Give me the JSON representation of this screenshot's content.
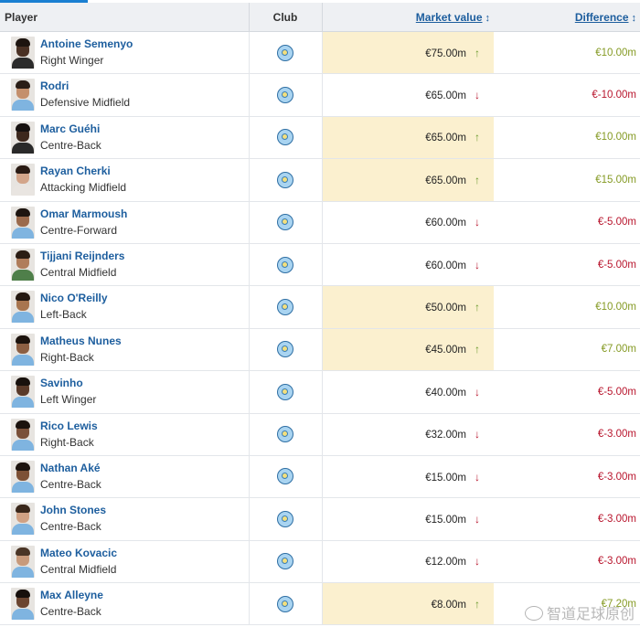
{
  "header": {
    "player": "Player",
    "club": "Club",
    "market_value": "Market value",
    "difference": "Difference",
    "sort_glyph": "↕"
  },
  "colors": {
    "link_blue": "#1d5e9e",
    "highlight": "#fbf0cf",
    "up_green": "#6b9b2e",
    "down_red": "#b8152d"
  },
  "rows": [
    {
      "name": "Antoine Semenyo",
      "position": "Right Winger",
      "value": "€75.00m",
      "trend": "up",
      "diff": "€10.00m",
      "skin": "#4a3124",
      "hair": "#1d140f",
      "shirt": "#2b2b2b"
    },
    {
      "name": "Rodri",
      "position": "Defensive Midfield",
      "value": "€65.00m",
      "trend": "down",
      "diff": "€-10.00m",
      "skin": "#c48f6c",
      "hair": "#2a1d16",
      "shirt": "#7fb4e0"
    },
    {
      "name": "Marc Guéhi",
      "position": "Centre-Back",
      "value": "€65.00m",
      "trend": "up",
      "diff": "€10.00m",
      "skin": "#3d281d",
      "hair": "#161110",
      "shirt": "#2a2a2a"
    },
    {
      "name": "Rayan Cherki",
      "position": "Attacking Midfield",
      "value": "€65.00m",
      "trend": "up",
      "diff": "€15.00m",
      "skin": "#d3a58a",
      "hair": "#2a1b14",
      "shirt": "#e9e5e1"
    },
    {
      "name": "Omar Marmoush",
      "position": "Centre-Forward",
      "value": "€60.00m",
      "trend": "down",
      "diff": "€-5.00m",
      "skin": "#9b6a4c",
      "hair": "#1e1510",
      "shirt": "#7fb4e0"
    },
    {
      "name": "Tijjani Reijnders",
      "position": "Central Midfield",
      "value": "€60.00m",
      "trend": "down",
      "diff": "€-5.00m",
      "skin": "#b07d5b",
      "hair": "#2b1d14",
      "shirt": "#4f7f4a"
    },
    {
      "name": "Nico O'Reilly",
      "position": "Left-Back",
      "value": "€50.00m",
      "trend": "up",
      "diff": "€10.00m",
      "skin": "#a8754f",
      "hair": "#231710",
      "shirt": "#7fb4e0"
    },
    {
      "name": "Matheus Nunes",
      "position": "Right-Back",
      "value": "€45.00m",
      "trend": "up",
      "diff": "€7.00m",
      "skin": "#8c5f43",
      "hair": "#1c130e",
      "shirt": "#7fb4e0"
    },
    {
      "name": "Savinho",
      "position": "Left Winger",
      "value": "€40.00m",
      "trend": "down",
      "diff": "€-5.00m",
      "skin": "#5a3a29",
      "hair": "#18110d",
      "shirt": "#7fb4e0"
    },
    {
      "name": "Rico Lewis",
      "position": "Right-Back",
      "value": "€32.00m",
      "trend": "down",
      "diff": "€-3.00m",
      "skin": "#7a5039",
      "hair": "#1a120e",
      "shirt": "#7fb4e0"
    },
    {
      "name": "Nathan Aké",
      "position": "Centre-Back",
      "value": "€15.00m",
      "trend": "down",
      "diff": "€-3.00m",
      "skin": "#7d5136",
      "hair": "#1d140f",
      "shirt": "#7fb4e0"
    },
    {
      "name": "John Stones",
      "position": "Centre-Back",
      "value": "€15.00m",
      "trend": "down",
      "diff": "€-3.00m",
      "skin": "#d0a184",
      "hair": "#3a271b",
      "shirt": "#7fb4e0"
    },
    {
      "name": "Mateo Kovacic",
      "position": "Central Midfield",
      "value": "€12.00m",
      "trend": "down",
      "diff": "€-3.00m",
      "skin": "#c89a7b",
      "hair": "#4a3526",
      "shirt": "#7fb4e0"
    },
    {
      "name": "Max Alleyne",
      "position": "Centre-Back",
      "value": "€8.00m",
      "trend": "up",
      "diff": "€7.20m",
      "skin": "#6b4530",
      "hair": "#17100c",
      "shirt": "#7fb4e0"
    }
  ],
  "watermark": "智道足球原创"
}
